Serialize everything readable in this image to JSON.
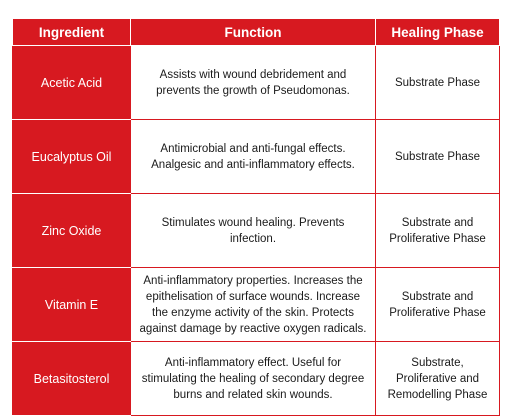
{
  "colors": {
    "header_bg": "#d71920",
    "header_text": "#ffffff",
    "ingredient_bg": "#d71920",
    "cell_bg": "#ffffff",
    "cell_text": "#1a1a1a"
  },
  "table": {
    "headers": [
      "Ingredient",
      "Function",
      "Healing Phase"
    ],
    "rows": [
      {
        "ingredient": "Acetic Acid",
        "function": "Assists with wound debridement and prevents the growth of Pseudomonas.",
        "phase": "Substrate Phase"
      },
      {
        "ingredient": "Eucalyptus Oil",
        "function": "Antimicrobial and anti-fungal effects. Analgesic and anti-inflammatory effects.",
        "phase": "Substrate Phase"
      },
      {
        "ingredient": "Zinc Oxide",
        "function": "Stimulates wound healing. Prevents infection.",
        "phase": "Substrate and Proliferative Phase"
      },
      {
        "ingredient": "Vitamin E",
        "function": "Anti-inflammatory properties. Increases the epithelisation of surface wounds. Increase the enzyme activity of the skin. Protects against damage by reactive oxygen radicals.",
        "phase": "Substrate and Proliferative Phase"
      },
      {
        "ingredient": "Betasitosterol",
        "function": "Anti-inflammatory effect. Useful for stimulating the healing of secondary degree burns and related skin wounds.",
        "phase": "Substrate, Proliferative and Remodelling Phase"
      }
    ]
  }
}
